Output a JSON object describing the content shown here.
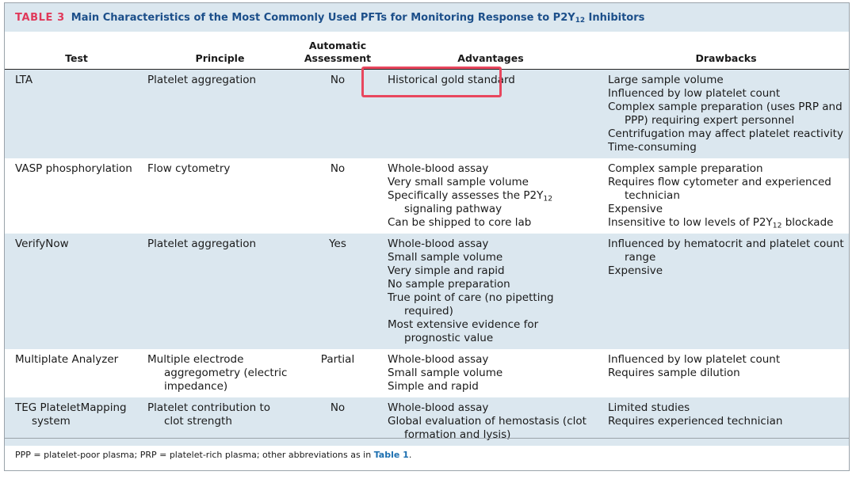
{
  "caption": {
    "label": "TABLE 3",
    "title_pre": "Main Characteristics of the Most Commonly Used PFTs for Monitoring Response to P2Y",
    "title_sub": "12",
    "title_post": " Inhibitors"
  },
  "columns": {
    "test": "Test",
    "principle": "Principle",
    "auto_line1": "Automatic",
    "auto_line2": "Assessment",
    "advantages": "Advantages",
    "drawbacks": "Drawbacks"
  },
  "rows": [
    {
      "test": [
        "LTA"
      ],
      "principle": [
        "Platelet aggregation"
      ],
      "automatic": "No",
      "advantages": [
        [
          "Historical gold standard"
        ]
      ],
      "drawbacks": [
        [
          "Large sample volume"
        ],
        [
          "Influenced by low platelet count"
        ],
        [
          "Complex sample preparation (uses PRP and PPP) requiring expert personnel"
        ],
        [
          "Centrifugation may affect platelet reactivity"
        ],
        [
          "Time-consuming"
        ]
      ]
    },
    {
      "test": [
        "VASP phosphorylation"
      ],
      "principle": [
        "Flow cytometry"
      ],
      "automatic": "No",
      "advantages": [
        [
          "Whole-blood assay"
        ],
        [
          "Very small sample volume"
        ],
        [
          "Specifically assesses the P2Y",
          "12",
          " signaling pathway"
        ],
        [
          "Can be shipped to core lab"
        ]
      ],
      "drawbacks": [
        [
          "Complex sample preparation"
        ],
        [
          "Requires flow cytometer and experienced technician"
        ],
        [
          "Expensive"
        ],
        [
          "Insensitive to low levels of P2Y",
          "12",
          " blockade"
        ]
      ]
    },
    {
      "test": [
        "VerifyNow"
      ],
      "principle": [
        "Platelet aggregation"
      ],
      "automatic": "Yes",
      "advantages": [
        [
          "Whole-blood assay"
        ],
        [
          "Small sample volume"
        ],
        [
          "Very simple and rapid"
        ],
        [
          "No sample preparation"
        ],
        [
          "True point of care (no pipetting required)"
        ],
        [
          "Most extensive evidence for prognostic value"
        ]
      ],
      "drawbacks": [
        [
          "Influenced by hematocrit and platelet count range"
        ],
        [
          "Expensive"
        ]
      ]
    },
    {
      "test": [
        "Multiplate Analyzer"
      ],
      "principle": [
        "Multiple electrode aggregometry (electric impedance)"
      ],
      "automatic": "Partial",
      "advantages": [
        [
          "Whole-blood assay"
        ],
        [
          "Small sample volume"
        ],
        [
          "Simple and rapid"
        ]
      ],
      "drawbacks": [
        [
          "Influenced by low platelet count"
        ],
        [
          "Requires sample dilution"
        ]
      ]
    },
    {
      "test": [
        "TEG PlateletMapping system"
      ],
      "principle": [
        "Platelet contribution to clot strength"
      ],
      "automatic": "No",
      "advantages": [
        [
          "Whole-blood assay"
        ],
        [
          "Global evaluation of hemostasis (clot formation and lysis)"
        ]
      ],
      "drawbacks": [
        [
          "Limited studies"
        ],
        [
          "Requires experienced technician"
        ]
      ]
    }
  ],
  "footnote": {
    "text": "PPP = platelet-poor plasma; PRP = platelet-rich plasma; other abbreviations as in ",
    "link": "Table 1",
    "end": "."
  },
  "colors": {
    "highlight": "#e8475e",
    "stripe": "#dbe7ef",
    "caption_label": "#e0395a",
    "caption_title": "#1c4f8a"
  }
}
